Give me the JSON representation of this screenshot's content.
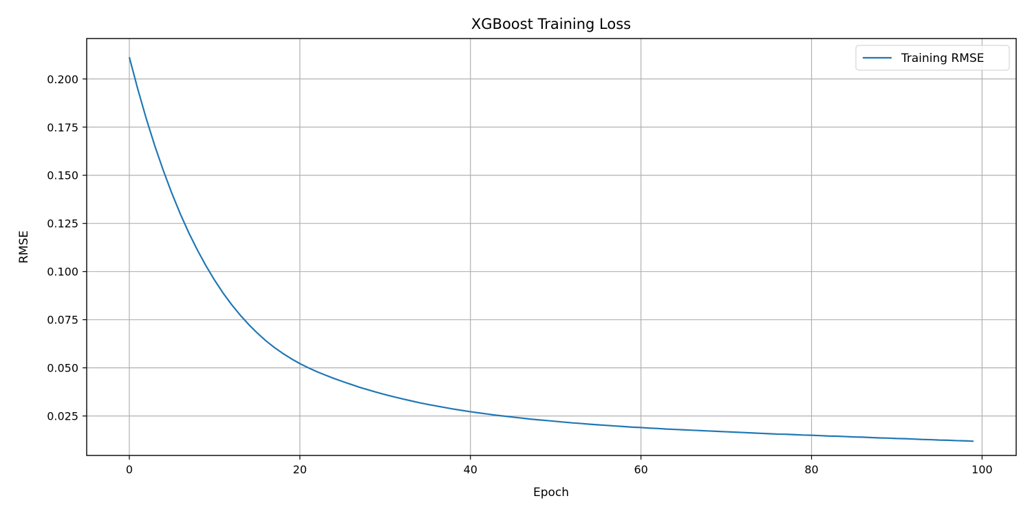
{
  "chart_data": {
    "type": "line",
    "title": "XGBoost Training Loss",
    "xlabel": "Epoch",
    "ylabel": "RMSE",
    "xlim": [
      -5,
      104
    ],
    "ylim": [
      0.0045,
      0.221
    ],
    "xticks": [
      0,
      20,
      40,
      60,
      80,
      100
    ],
    "xtick_labels": [
      "0",
      "20",
      "40",
      "60",
      "80",
      "100"
    ],
    "yticks": [
      0.025,
      0.05,
      0.075,
      0.1,
      0.125,
      0.15,
      0.175,
      0.2
    ],
    "ytick_labels": [
      "0.025",
      "0.050",
      "0.075",
      "0.100",
      "0.125",
      "0.150",
      "0.175",
      "0.200"
    ],
    "grid": true,
    "legend_position": "top-right",
    "series": [
      {
        "name": "Training RMSE",
        "color": "#1f77b4",
        "x": [
          0,
          1,
          2,
          3,
          4,
          5,
          6,
          7,
          8,
          9,
          10,
          11,
          12,
          13,
          14,
          15,
          16,
          17,
          18,
          19,
          20,
          21,
          22,
          23,
          24,
          25,
          26,
          27,
          28,
          29,
          30,
          31,
          32,
          33,
          34,
          35,
          36,
          37,
          38,
          39,
          40,
          41,
          42,
          43,
          44,
          45,
          46,
          47,
          48,
          49,
          50,
          51,
          52,
          53,
          54,
          55,
          56,
          57,
          58,
          59,
          60,
          61,
          62,
          63,
          64,
          65,
          66,
          67,
          68,
          69,
          70,
          71,
          72,
          73,
          74,
          75,
          76,
          77,
          78,
          79,
          80,
          81,
          82,
          83,
          84,
          85,
          86,
          87,
          88,
          89,
          90,
          91,
          92,
          93,
          94,
          95,
          96,
          97,
          98,
          99
        ],
        "values": [
          0.2113,
          0.1946,
          0.1792,
          0.1651,
          0.1523,
          0.1405,
          0.1297,
          0.1199,
          0.111,
          0.1029,
          0.0955,
          0.0888,
          0.0828,
          0.0774,
          0.0725,
          0.0681,
          0.0641,
          0.0606,
          0.0575,
          0.0547,
          0.0522,
          0.05,
          0.048,
          0.0462,
          0.0445,
          0.0429,
          0.0414,
          0.0399,
          0.0386,
          0.0373,
          0.0361,
          0.035,
          0.0339,
          0.0329,
          0.0319,
          0.031,
          0.0302,
          0.0294,
          0.0286,
          0.0279,
          0.0272,
          0.0266,
          0.026,
          0.0254,
          0.0249,
          0.0244,
          0.0239,
          0.0234,
          0.023,
          0.0226,
          0.0222,
          0.0218,
          0.0214,
          0.0211,
          0.0207,
          0.0204,
          0.0201,
          0.0198,
          0.0195,
          0.0192,
          0.019,
          0.0187,
          0.0185,
          0.0182,
          0.018,
          0.0178,
          0.0176,
          0.0174,
          0.0172,
          0.017,
          0.0168,
          0.0166,
          0.0164,
          0.0162,
          0.016,
          0.0158,
          0.0156,
          0.0155,
          0.0153,
          0.0151,
          0.015,
          0.0148,
          0.0146,
          0.0145,
          0.0143,
          0.0141,
          0.014,
          0.0138,
          0.0136,
          0.0135,
          0.0133,
          0.0132,
          0.013,
          0.0128,
          0.0127,
          0.0125,
          0.0124,
          0.0122,
          0.0121,
          0.0119
        ]
      }
    ]
  }
}
